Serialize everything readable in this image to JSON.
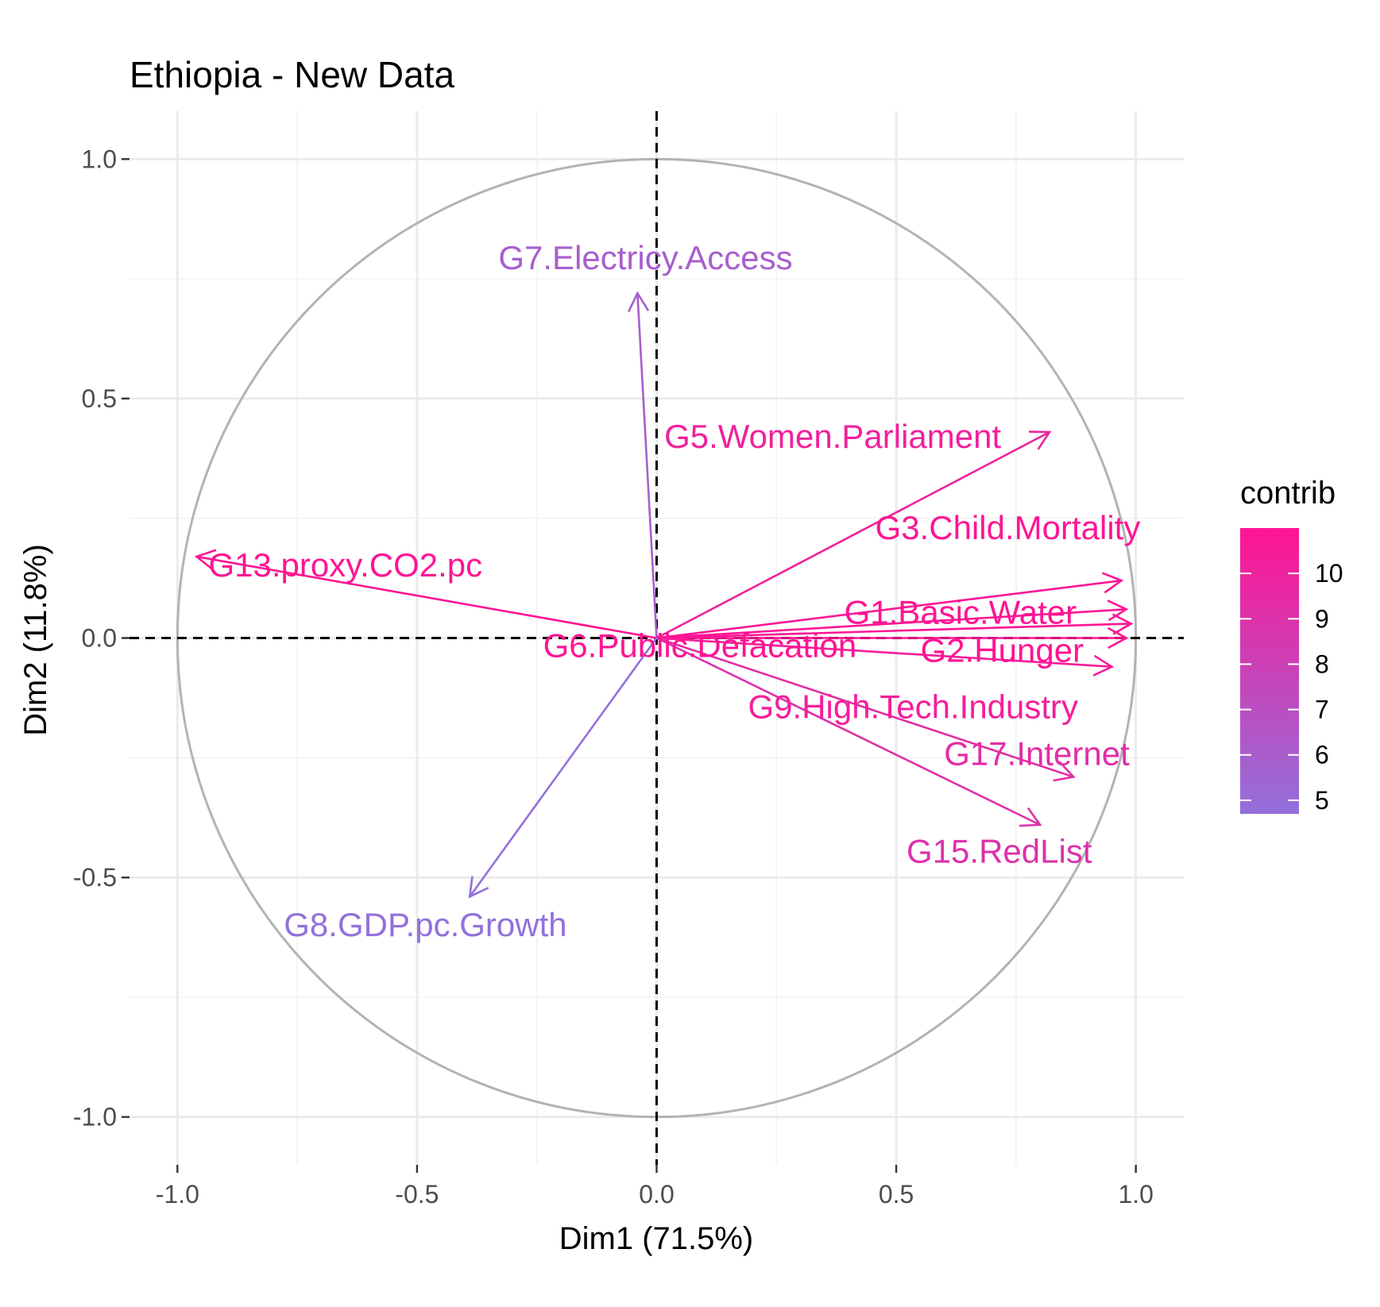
{
  "chart_data": {
    "type": "scatter",
    "subtype": "pca-variable-correlation-circle",
    "title": "Ethiopia - New Data",
    "xlabel": "Dim1 (71.5%)",
    "ylabel": "Dim2 (11.8%)",
    "xlim": [
      -1.1,
      1.1
    ],
    "ylim": [
      -1.1,
      1.1
    ],
    "x_ticks": [
      "-1.0",
      "-0.5",
      "0.0",
      "0.5",
      "1.0"
    ],
    "y_ticks": [
      "1.0",
      "0.5",
      "0.0",
      "-0.5",
      "-1.0"
    ],
    "grid": true,
    "unit_circle": true,
    "reference_lines": {
      "x": 0,
      "y": 0,
      "style": "dashed"
    },
    "color_scale": {
      "name": "contrib",
      "low_color": "#9370DB",
      "high_color": "#FF1493",
      "min": 4.7,
      "max": 11,
      "ticks": [
        "10",
        "9",
        "8",
        "7",
        "6",
        "5"
      ]
    },
    "legend_position": "right",
    "variables": [
      {
        "name": "G7.Electricy.Access",
        "x": -0.04,
        "y": 0.72,
        "contrib": 5.9
      },
      {
        "name": "G5.Women.Parliament",
        "x": 0.82,
        "y": 0.43,
        "contrib": 10.2
      },
      {
        "name": "G13.proxy.CO2.pc",
        "x": -0.96,
        "y": 0.17,
        "contrib": 10.9
      },
      {
        "name": "G3.Child.Mortality",
        "x": 0.97,
        "y": 0.12,
        "contrib": 10.9
      },
      {
        "name": "G1.Basic.Water",
        "x": 0.98,
        "y": 0.06,
        "contrib": 11.0
      },
      {
        "name": "G6.Public.Defacation",
        "x": 0.99,
        "y": 0.03,
        "contrib": 11.0
      },
      {
        "name": "G2.Hunger",
        "x": 0.98,
        "y": 0.0,
        "contrib": 11.0
      },
      {
        "name": "G9.High.Tech.Industry",
        "x": 0.95,
        "y": -0.06,
        "contrib": 10.4
      },
      {
        "name": "G17.Internet",
        "x": 0.87,
        "y": -0.29,
        "contrib": 9.3
      },
      {
        "name": "G15.RedList",
        "x": 0.8,
        "y": -0.39,
        "contrib": 9.0
      },
      {
        "name": "G8.GDP.pc.Growth",
        "x": -0.39,
        "y": -0.54,
        "contrib": 4.7
      }
    ]
  }
}
